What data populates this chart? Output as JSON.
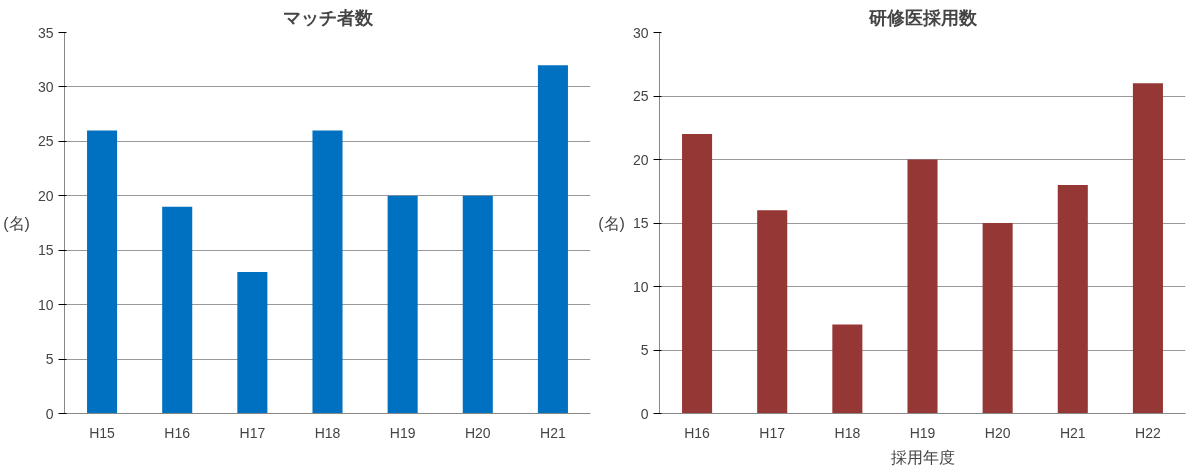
{
  "chart_data": [
    {
      "type": "bar",
      "title": "マッチ者数",
      "ylabel": "(名)",
      "categories": [
        "H15",
        "H16",
        "H17",
        "H18",
        "H19",
        "H20",
        "H21"
      ],
      "series": [
        {
          "color": "#0070c0",
          "values": [
            26,
            19,
            13,
            26,
            20,
            20,
            32
          ]
        }
      ],
      "ylim": [
        0,
        35
      ],
      "yticks": [
        0,
        5,
        10,
        15,
        20,
        25,
        30,
        35
      ],
      "grid": "y"
    },
    {
      "type": "bar",
      "title": "研修医採用数",
      "ylabel": "(名)",
      "xlabel": "採用年度",
      "categories": [
        "H16",
        "H17",
        "H18",
        "H19",
        "H20",
        "H21",
        "H22"
      ],
      "series": [
        {
          "color": "#953735",
          "values": [
            22,
            16,
            7,
            20,
            15,
            18,
            26
          ]
        }
      ],
      "ylim": [
        0,
        30
      ],
      "yticks": [
        0,
        5,
        10,
        15,
        20,
        25,
        30
      ],
      "grid": "y"
    }
  ]
}
